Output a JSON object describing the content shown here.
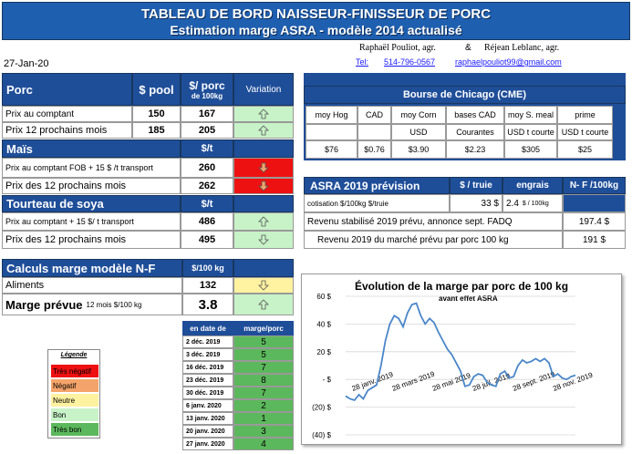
{
  "title": {
    "line1": "TABLEAU DE BORD NAISSEUR-FINISSEUR DE PORC",
    "line2": "Estimation marge ASRA - modèle 2014 actualisé"
  },
  "authors": {
    "names": "Raphaël Pouliot, agr.",
    "amp": "&",
    "names2": "Réjean Leblanc, agr.",
    "tel_label": "Tel:",
    "tel": "514-796-0567",
    "email": "raphaelpouliot99@gmail.com"
  },
  "date": "27-Jan-20",
  "porc": {
    "header": "Porc",
    "col_pool": "$ pool",
    "col_porc_line1": "$/ porc",
    "col_porc_line2": "de 100kg",
    "col_var": "Variation",
    "rows": [
      {
        "label": "Prix au comptant",
        "pool": "150",
        "porc": "167",
        "trend": "up"
      },
      {
        "label": "Prix 12 prochains mois",
        "pool": "185",
        "porc": "205",
        "trend": "up"
      }
    ]
  },
  "mais": {
    "header": "Maïs",
    "unit": "$/t",
    "rows": [
      {
        "label": "Prix au comptant  FOB + 15 $ /t transport",
        "value": "260",
        "trend": "down"
      },
      {
        "label": "Prix des 12 prochains mois",
        "value": "262",
        "trend": "down"
      }
    ]
  },
  "soya": {
    "header": "Tourteau de soya",
    "unit": "$/t",
    "rows": [
      {
        "label": "Prix au comptant  + 15 $/ t  transport",
        "value": "486",
        "trend": "up"
      },
      {
        "label": "Prix des 12 prochains mois",
        "value": "495",
        "trend": "down"
      }
    ]
  },
  "cme": {
    "header": "Bourse de Chicago (CME)",
    "columns": [
      "moy Hog",
      "CAD",
      "moy Corn",
      "bases CAD",
      "moy S. meal",
      "prime"
    ],
    "units": [
      "",
      "",
      "USD",
      "Courantes",
      "USD t courte",
      "USD t courte"
    ],
    "values": [
      "$76",
      "$0.76",
      "$3.90",
      "$2.23",
      "$305",
      "$25"
    ]
  },
  "asra": {
    "header": "ASRA 2019 prévision",
    "col_truie": "$ / truie",
    "col_engrais": "engrais",
    "col_nf": "N- F /100kg",
    "cotisation_label": "cotisation $/100kg  $/truie",
    "cotisation_truie": "33  $",
    "cotisation_engrais": "2.4",
    "cotisation_engrais_unit": "$ / 100kg",
    "revenu_stab_label": "Revenu stabilisé 2019 prévu, annonce sept. FADQ",
    "revenu_stab_value": "197.4 $",
    "revenu_marche_label": "Revenu  2019 du marché prévu par porc 100 kg",
    "revenu_marche_value": "191 $"
  },
  "calculs": {
    "header": "Calculs marge  modèle N-F",
    "unit": "$/100 kg",
    "aliments_label": "Aliments",
    "aliments_value": "132",
    "aliments_trend": "down",
    "marge_label": "Marge prévue",
    "marge_sub": "12 mois  $/100 kg",
    "marge_value": "3.8",
    "marge_trend": "up"
  },
  "history": {
    "col_date": "en date de",
    "col_marge": "marge/porc",
    "rows": [
      {
        "date": "2 déc. 2019",
        "value": "5"
      },
      {
        "date": "3 déc. 2019",
        "value": "5"
      },
      {
        "date": "16 déc. 2019",
        "value": "7"
      },
      {
        "date": "23 déc. 2019",
        "value": "8"
      },
      {
        "date": "30 déc. 2019",
        "value": "7"
      },
      {
        "date": "6 janv. 2020",
        "value": "2"
      },
      {
        "date": "13 janv. 2020",
        "value": "1"
      },
      {
        "date": "20 janv. 2020",
        "value": "3"
      },
      {
        "date": "27 janv. 2020",
        "value": "4"
      }
    ]
  },
  "legend": {
    "title": "Légende",
    "items": [
      {
        "label": "Très négatif",
        "color": "#ee1111"
      },
      {
        "label": "Négatif",
        "color": "#f4a46a"
      },
      {
        "label": "Neutre",
        "color": "#fff2a0"
      },
      {
        "label": "Bon",
        "color": "#c8f2c8"
      },
      {
        "label": "Très bon",
        "color": "#5cb85c"
      }
    ]
  },
  "colors": {
    "header_blue": "#1f4e99",
    "up_green": "#c8f2c8",
    "down_red": "#ee1111",
    "neutral_yellow": "#fff2a0",
    "line_blue": "#4a86c8"
  },
  "chart_data": {
    "type": "line",
    "title": "Évolution de la marge par porc de 100 kg",
    "subtitle": "avant effet ASRA",
    "ylim": [
      -40,
      60
    ],
    "yticks": [
      60,
      40,
      20,
      0,
      -20,
      -40
    ],
    "ytick_labels": [
      "60  $",
      "40  $",
      "20  $",
      "-  $",
      "(20) $",
      "(40) $"
    ],
    "xtick_labels": [
      "28 janv. 2019",
      "28 mars 2019",
      "28 mai 2019",
      "28 juil. 2019",
      "28 sept. 2019",
      "28 nov. 2019"
    ],
    "series": [
      {
        "x": [
          0,
          2,
          4,
          6,
          8,
          10,
          12,
          14,
          16,
          18,
          20,
          22,
          24,
          26,
          28,
          30,
          32,
          34,
          36,
          38,
          40,
          42,
          44,
          46,
          48,
          50,
          52,
          54,
          56,
          58,
          60,
          62,
          64,
          66,
          68,
          70,
          72,
          74,
          76,
          78,
          80,
          82,
          84,
          86,
          88,
          90,
          92,
          94,
          96,
          98,
          100,
          102,
          104
        ],
        "values": [
          -12,
          -14,
          -15,
          -11,
          -14,
          -8,
          -6,
          -4,
          10,
          28,
          40,
          46,
          44,
          38,
          48,
          54,
          55,
          46,
          40,
          44,
          41,
          34,
          28,
          22,
          18,
          12,
          6,
          -5,
          -4,
          2,
          4,
          3,
          -2,
          -4,
          -5,
          4,
          6,
          1,
          2,
          10,
          14,
          12,
          13,
          15,
          13,
          15,
          12,
          2,
          4,
          1,
          0,
          2,
          3
        ]
      }
    ]
  }
}
